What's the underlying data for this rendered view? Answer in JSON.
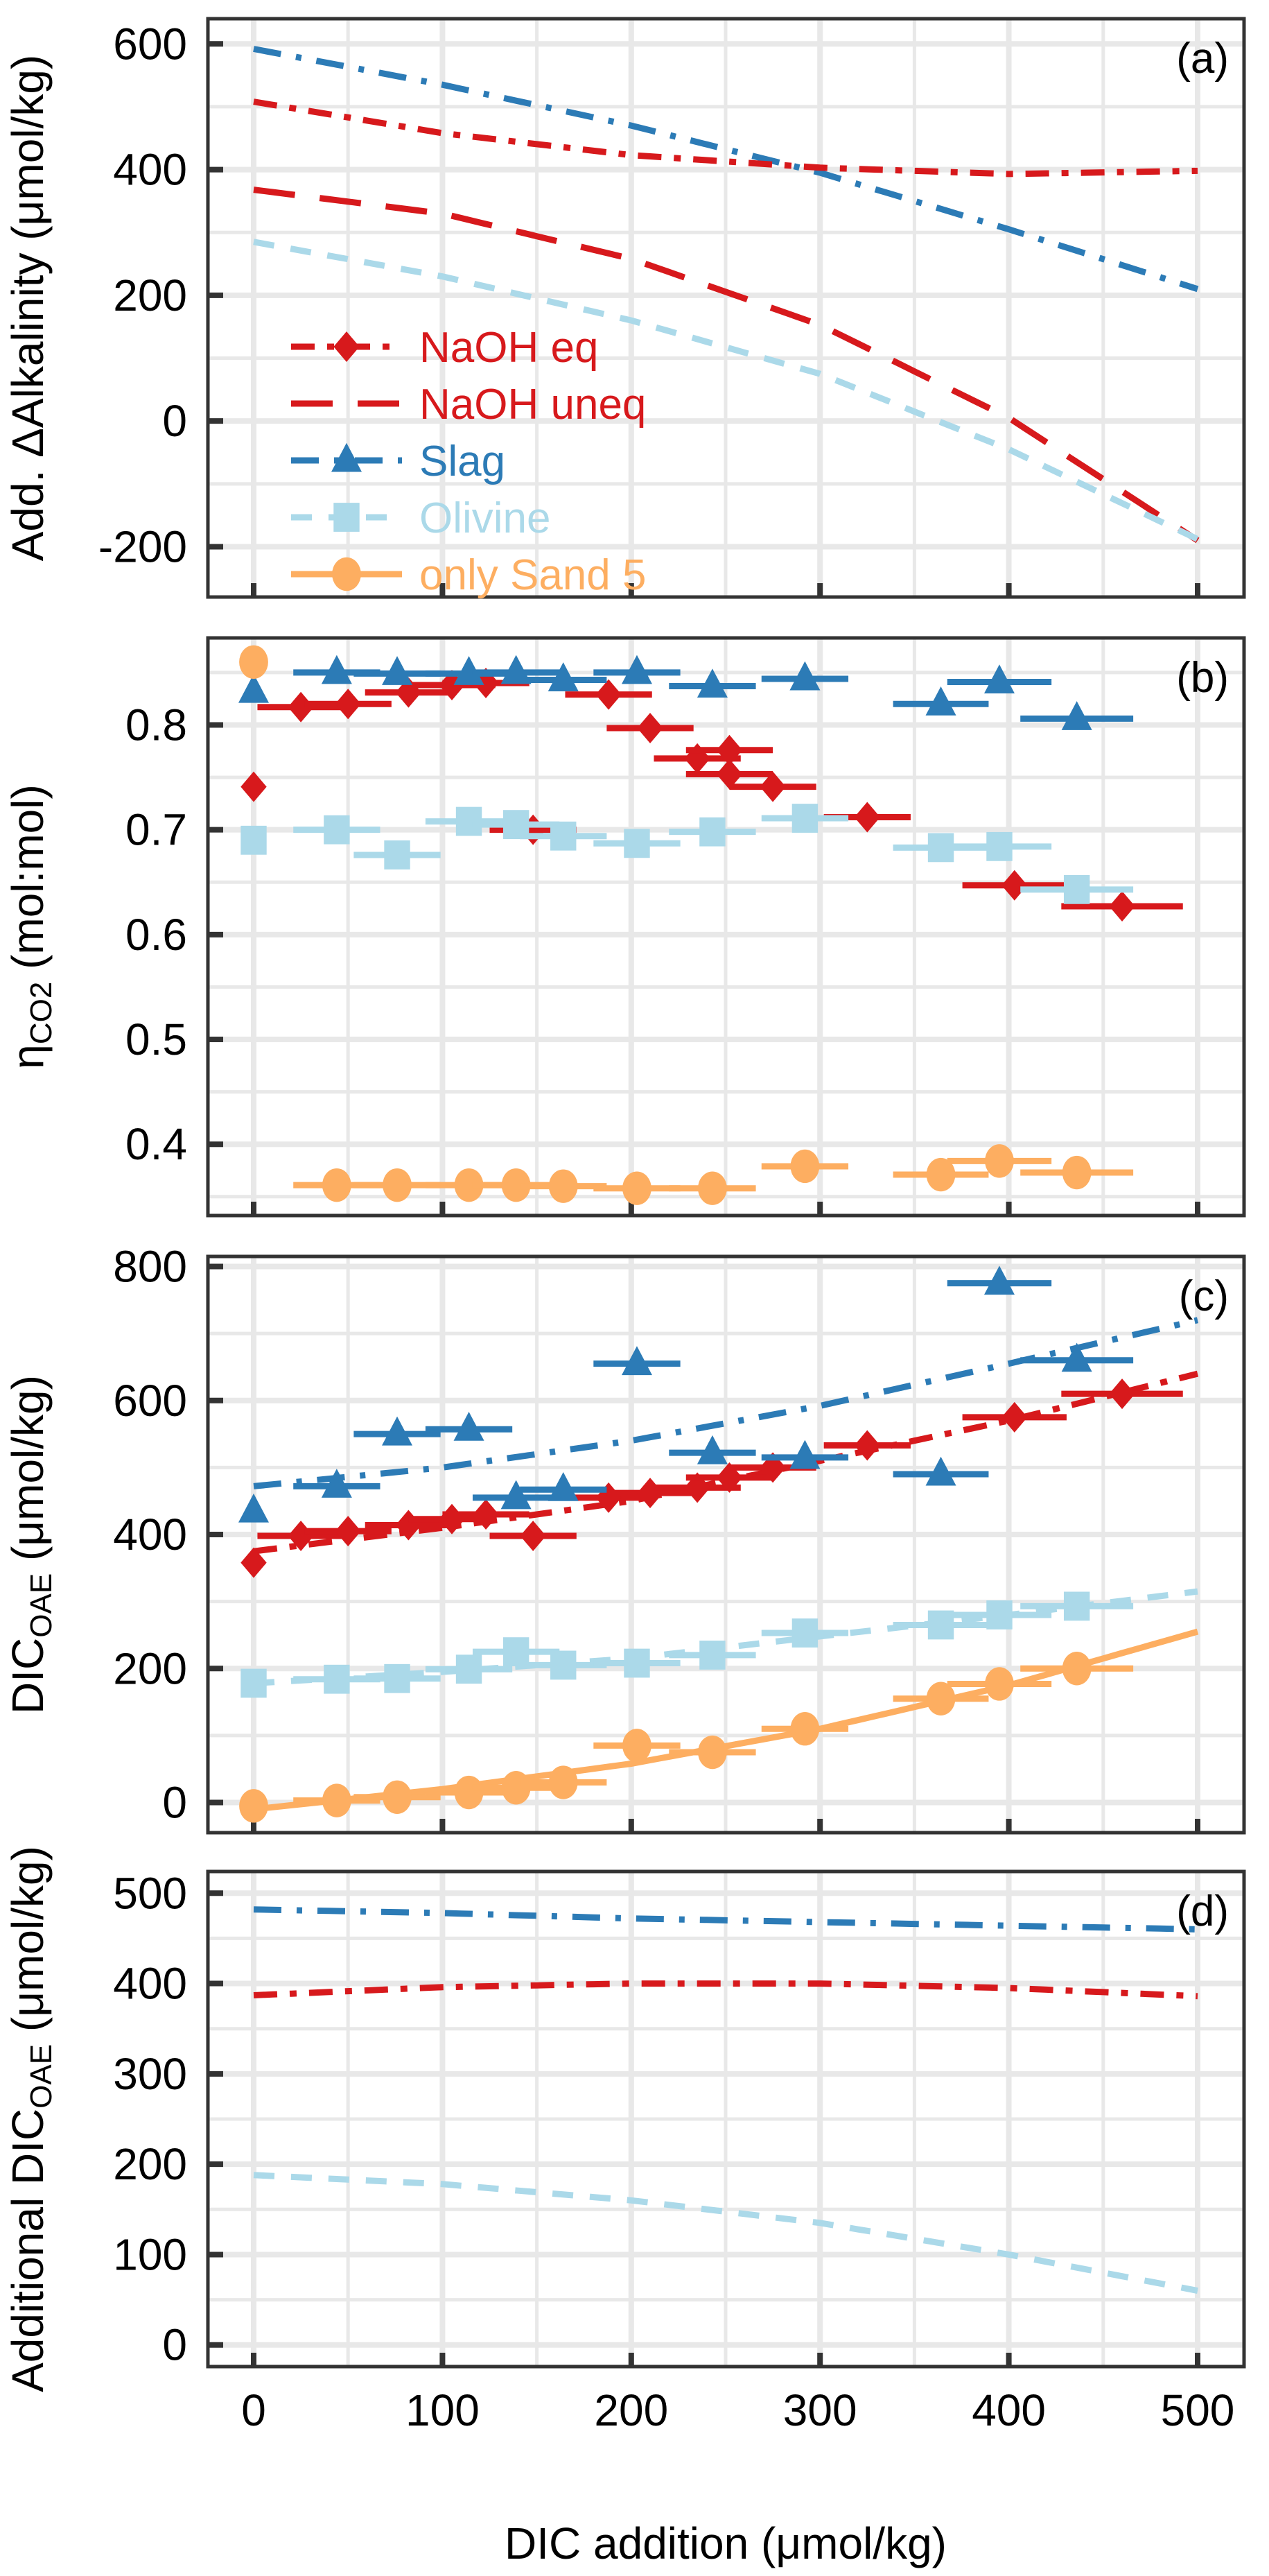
{
  "chart_data": {
    "type": "line",
    "xlabel": "DIC addition (μmol/kg)",
    "xlim": [
      -25,
      525
    ],
    "xticks": [
      0,
      100,
      200,
      300,
      400,
      500
    ],
    "xtick_labels": [
      "0",
      "100",
      "200",
      "300",
      "400",
      "500"
    ],
    "grid": true,
    "series_styles": [
      {
        "key": "naoh_eq",
        "name": "NaOH eq",
        "color": "#d7191c",
        "marker": "diamond",
        "line": "dash-dot"
      },
      {
        "key": "naoh_uneq",
        "name": "NaOH uneq",
        "color": "#d7191c",
        "marker": "none",
        "line": "long-dash"
      },
      {
        "key": "slag",
        "name": "Slag",
        "color": "#2c7bb6",
        "marker": "triangle",
        "line": "dash-dot-dot"
      },
      {
        "key": "olivine",
        "name": "Olivine",
        "color": "#abd9e9",
        "marker": "square",
        "line": "dash"
      },
      {
        "key": "sand",
        "name": "only Sand 5",
        "color": "#fdae61",
        "marker": "circle",
        "line": "solid"
      }
    ],
    "legend": {
      "location": "lower-left",
      "panel": "a"
    },
    "panels": [
      {
        "id": "a",
        "label": "(a)",
        "ylabel": "Add. ΔAlkalinity (μmol/kg)",
        "ylim": [
          -280,
          640
        ],
        "yticks": [
          -200,
          0,
          200,
          400,
          600
        ],
        "ytick_labels": [
          "-200",
          "0",
          "200",
          "400",
          "600"
        ],
        "lines": [
          {
            "series": "slag",
            "x": [
              0,
              100,
              200,
              300,
              400,
              500
            ],
            "y": [
              592,
              535,
              470,
              395,
              305,
              210
            ]
          },
          {
            "series": "naoh_eq",
            "x": [
              0,
              100,
              200,
              300,
              400,
              500
            ],
            "y": [
              508,
              458,
              423,
              403,
              393,
              398
            ]
          },
          {
            "series": "naoh_uneq",
            "x": [
              0,
              100,
              200,
              300,
              400,
              500
            ],
            "y": [
              368,
              330,
              258,
              153,
              5,
              -190
            ]
          },
          {
            "series": "olivine",
            "x": [
              0,
              100,
              200,
              300,
              400,
              500
            ],
            "y": [
              285,
              230,
              160,
              75,
              -45,
              -188
            ]
          }
        ],
        "points": []
      },
      {
        "id": "b",
        "label": "(b)",
        "ylabel": "ηCO2 (mol:mol)",
        "ylabel_main": "η",
        "ylabel_sub": "CO2",
        "ylabel_rest": " (mol:mol)",
        "ylim": [
          0.332,
          0.883
        ],
        "yticks": [
          0.4,
          0.5,
          0.6,
          0.7,
          0.8
        ],
        "ytick_labels": [
          "0.4",
          "0.5",
          "0.6",
          "0.7",
          "0.8"
        ],
        "lines": [],
        "points": [
          {
            "series": "naoh_eq",
            "x": [
              0,
              25,
              50,
              82,
              105,
              123,
              148,
              188,
              210,
              235,
              252,
              252,
              275,
              325,
              403,
              460
            ],
            "y": [
              0.741,
              0.817,
              0.82,
              0.831,
              0.838,
              0.84,
              0.7,
              0.829,
              0.797,
              0.768,
              0.776,
              0.753,
              0.741,
              0.712,
              0.647,
              0.627
            ],
            "xerr": [
              0,
              10,
              10,
              10,
              10,
              10,
              10,
              10,
              10,
              10,
              10,
              10,
              10,
              10,
              12,
              14
            ]
          },
          {
            "series": "slag",
            "x": [
              0,
              44,
              76,
              114,
              139,
              164,
              203,
              243,
              292,
              364,
              395,
              436
            ],
            "y": [
              0.832,
              0.85,
              0.849,
              0.849,
              0.85,
              0.843,
              0.85,
              0.837,
              0.844,
              0.82,
              0.841,
              0.806
            ],
            "xerr": [
              0,
              10,
              10,
              10,
              10,
              10,
              10,
              10,
              10,
              11,
              12,
              13
            ]
          },
          {
            "series": "olivine",
            "x": [
              0,
              44,
              76,
              114,
              139,
              164,
              203,
              243,
              292,
              364,
              395,
              436
            ],
            "y": [
              0.69,
              0.7,
              0.676,
              0.708,
              0.705,
              0.694,
              0.687,
              0.698,
              0.711,
              0.683,
              0.684,
              0.643
            ],
            "xerr": [
              0,
              10,
              10,
              10,
              10,
              10,
              10,
              10,
              10,
              11,
              12,
              13
            ]
          },
          {
            "series": "sand",
            "x": [
              0,
              44,
              76,
              114,
              139,
              164,
              203,
              243,
              292,
              364,
              395,
              436
            ],
            "y": [
              0.86,
              0.361,
              0.361,
              0.361,
              0.361,
              0.36,
              0.358,
              0.358,
              0.379,
              0.371,
              0.384,
              0.373
            ],
            "xerr": [
              0,
              10,
              10,
              10,
              10,
              10,
              10,
              10,
              10,
              11,
              12,
              13
            ]
          }
        ]
      },
      {
        "id": "c",
        "label": "(c)",
        "ylabel": "DICOAE (μmol/kg)",
        "ylabel_main": "DIC",
        "ylabel_sub": "OAE",
        "ylabel_rest": " (μmol/kg)",
        "ylim": [
          -45,
          815
        ],
        "yticks": [
          0,
          200,
          400,
          600,
          800
        ],
        "ytick_labels": [
          "0",
          "200",
          "400",
          "600",
          "800"
        ],
        "lines": [
          {
            "series": "slag",
            "x": [
              0,
              100,
              200,
              300,
              400,
              500
            ],
            "y": [
              472,
              500,
              540,
              592,
              655,
              720
            ]
          },
          {
            "series": "naoh_eq",
            "x": [
              0,
              100,
              200,
              300,
              400,
              500
            ],
            "y": [
              375,
              410,
              450,
              510,
              570,
              640
            ]
          },
          {
            "series": "olivine",
            "x": [
              0,
              100,
              200,
              300,
              400,
              500
            ],
            "y": [
              178,
              195,
              215,
              248,
              280,
              315
            ]
          },
          {
            "series": "sand",
            "x": [
              0,
              100,
              200,
              300,
              400,
              500
            ],
            "y": [
              -10,
              20,
              58,
              110,
              175,
              255
            ]
          }
        ],
        "points": [
          {
            "series": "naoh_eq",
            "x": [
              0,
              25,
              50,
              82,
              105,
              123,
              148,
              188,
              210,
              235,
              252,
              275,
              325,
              403,
              460
            ],
            "y": [
              358,
              398,
              405,
              414,
              423,
              430,
              398,
              455,
              462,
              470,
              485,
              500,
              533,
              575,
              610
            ],
            "xerr": [
              0,
              10,
              10,
              10,
              10,
              10,
              10,
              10,
              10,
              10,
              10,
              10,
              10,
              12,
              14
            ]
          },
          {
            "series": "slag",
            "x": [
              0,
              44,
              76,
              114,
              139,
              164,
              203,
              243,
              292,
              364,
              395,
              436
            ],
            "y": [
              435,
              472,
              550,
              557,
              455,
              467,
              655,
              522,
              515,
              490,
              775,
              660
            ],
            "xerr": [
              0,
              10,
              10,
              10,
              10,
              10,
              10,
              10,
              10,
              11,
              12,
              13
            ]
          },
          {
            "series": "olivine",
            "x": [
              0,
              44,
              76,
              114,
              139,
              164,
              203,
              243,
              292,
              364,
              395,
              436
            ],
            "y": [
              178,
              184,
              185,
              199,
              225,
              205,
              208,
              220,
              253,
              265,
              280,
              293
            ],
            "xerr": [
              0,
              10,
              10,
              10,
              10,
              10,
              10,
              10,
              10,
              11,
              12,
              13
            ]
          },
          {
            "series": "sand",
            "x": [
              0,
              44,
              76,
              114,
              139,
              164,
              203,
              243,
              292,
              364,
              395,
              436
            ],
            "y": [
              -5,
              3,
              8,
              15,
              22,
              30,
              85,
              75,
              110,
              155,
              177,
              200
            ],
            "xerr": [
              0,
              10,
              10,
              10,
              10,
              10,
              10,
              10,
              10,
              11,
              12,
              13
            ]
          }
        ]
      },
      {
        "id": "d",
        "label": "(d)",
        "ylabel": "Additional DICOAE (μmol/kg)",
        "ylabel_main": "Additional DIC",
        "ylabel_sub": "OAE",
        "ylabel_rest": " (μmol/kg)",
        "ylim": [
          -24,
          524
        ],
        "yticks": [
          0,
          100,
          200,
          300,
          400,
          500
        ],
        "ytick_labels": [
          "0",
          "100",
          "200",
          "300",
          "400",
          "500"
        ],
        "lines": [
          {
            "series": "slag",
            "x": [
              0,
              100,
              200,
              300,
              400,
              500
            ],
            "y": [
              482,
              478,
              472,
              468,
              464,
              460
            ]
          },
          {
            "series": "naoh_eq",
            "x": [
              0,
              100,
              200,
              300,
              400,
              500
            ],
            "y": [
              387,
              396,
              400,
              400,
              395,
              386
            ]
          },
          {
            "series": "olivine",
            "x": [
              0,
              100,
              200,
              300,
              400,
              500
            ],
            "y": [
              188,
              178,
              160,
              135,
              100,
              60
            ]
          }
        ],
        "points": []
      }
    ]
  }
}
